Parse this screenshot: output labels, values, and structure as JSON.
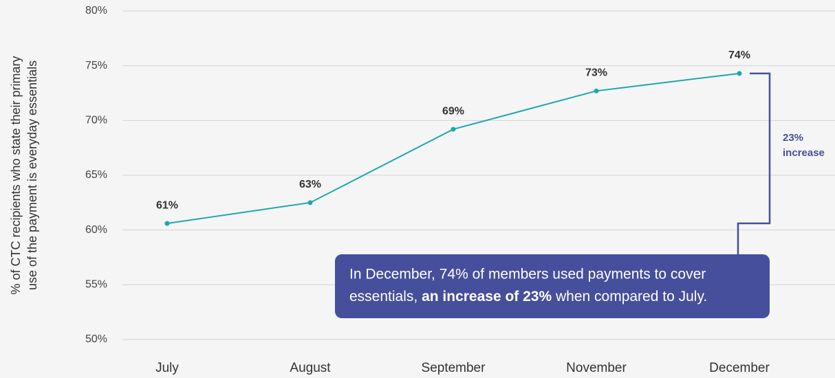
{
  "chart_data": {
    "type": "line",
    "y_label_lines": [
      "% of CTC recipients who state their primary",
      "use of the payment is everyday essentials"
    ],
    "categories": [
      "July",
      "August",
      "September",
      "November",
      "December"
    ],
    "series": [
      {
        "name": "Essentials",
        "color": "#1ba8ad",
        "values": [
          60.6,
          62.5,
          69.2,
          72.7,
          74.3
        ],
        "value_labels": [
          "61%",
          "63%",
          "69%",
          "73%",
          "74%"
        ]
      }
    ],
    "ylim": [
      50,
      80
    ],
    "yticks": [
      {
        "value": 50,
        "label": "50%"
      },
      {
        "value": 55,
        "label": "55%"
      },
      {
        "value": 60,
        "label": "60%"
      },
      {
        "value": 65,
        "label": "65%"
      },
      {
        "value": 70,
        "label": "70%"
      },
      {
        "value": 75,
        "label": "75%"
      },
      {
        "value": 80,
        "label": "80%"
      }
    ],
    "grid": true,
    "annotations": {
      "bracket": [
        "23%",
        "increase"
      ],
      "callout": {
        "line1": "In December, 74% of members used payments to cover",
        "line2_start": "essentials, ",
        "line2_bold": "an increase of 23%",
        "line2_end": " when compared to July."
      }
    }
  }
}
